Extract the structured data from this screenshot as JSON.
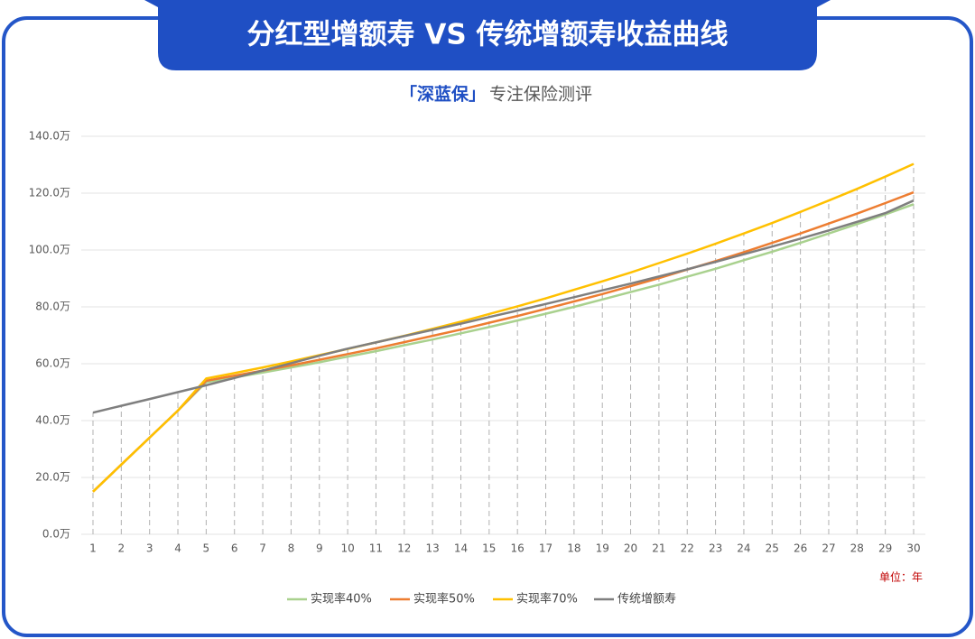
{
  "chart_data": {
    "type": "line",
    "title": "分红型增额寿 VS 传统增额寿收益曲线",
    "brand": "「深蓝保」",
    "subtitle": "专注保险测评",
    "unit_label": "单位：年",
    "categories": [
      "1",
      "2",
      "3",
      "4",
      "5",
      "6",
      "7",
      "8",
      "9",
      "10",
      "11",
      "12",
      "13",
      "14",
      "15",
      "16",
      "17",
      "18",
      "19",
      "20",
      "21",
      "22",
      "23",
      "24",
      "25",
      "26",
      "27",
      "28",
      "29",
      "30"
    ],
    "series": [
      {
        "name": "实现率40%",
        "color": "#a9d18e",
        "values": [
          15.0,
          24.5,
          34.0,
          43.5,
          53.5,
          55.2,
          56.9,
          58.7,
          60.5,
          62.5,
          64.4,
          66.5,
          68.5,
          70.7,
          72.9,
          75.2,
          77.6,
          80.0,
          82.6,
          85.2,
          87.8,
          90.6,
          93.4,
          96.4,
          99.4,
          102.5,
          105.8,
          109.1,
          112.5,
          116.1
        ]
      },
      {
        "name": "实现率50%",
        "color": "#ed7d31",
        "values": [
          15.0,
          24.5,
          34.0,
          43.5,
          54.0,
          55.8,
          57.6,
          59.4,
          61.4,
          63.4,
          65.4,
          67.6,
          69.8,
          72.0,
          74.4,
          76.8,
          79.3,
          81.9,
          84.5,
          87.3,
          90.1,
          93.1,
          96.1,
          99.2,
          102.5,
          105.8,
          109.3,
          112.8,
          116.5,
          120.3
        ]
      },
      {
        "name": "实现率70%",
        "color": "#ffc000",
        "values": [
          15.0,
          24.5,
          34.0,
          43.5,
          54.8,
          56.7,
          58.7,
          60.8,
          63.0,
          65.2,
          67.5,
          69.8,
          72.3,
          74.8,
          77.5,
          80.2,
          83.0,
          86.0,
          89.0,
          92.1,
          95.4,
          98.7,
          102.2,
          105.8,
          109.5,
          113.4,
          117.4,
          121.5,
          125.8,
          130.3
        ]
      },
      {
        "name": "传统增额寿",
        "color": "#7f7f7f",
        "values": [
          42.8,
          45.2,
          47.6,
          50.0,
          52.4,
          55.0,
          57.6,
          60.2,
          62.8,
          65.3,
          67.5,
          69.7,
          71.9,
          74.1,
          76.4,
          78.7,
          81.0,
          83.4,
          85.8,
          88.2,
          90.7,
          93.2,
          95.8,
          98.5,
          101.2,
          104.0,
          106.9,
          109.9,
          113.0,
          117.4
        ]
      }
    ],
    "ylim": [
      0,
      140
    ],
    "yticks": [
      {
        "value": 0,
        "label": "0.0万"
      },
      {
        "value": 20,
        "label": "20.0万"
      },
      {
        "value": 40,
        "label": "40.0万"
      },
      {
        "value": 60,
        "label": "60.0万"
      },
      {
        "value": 80,
        "label": "80.0万"
      },
      {
        "value": 100,
        "label": "100.0万"
      },
      {
        "value": 120,
        "label": "120.0万"
      },
      {
        "value": 140,
        "label": "140.0万"
      }
    ],
    "grid": true,
    "legend": "bottom"
  }
}
